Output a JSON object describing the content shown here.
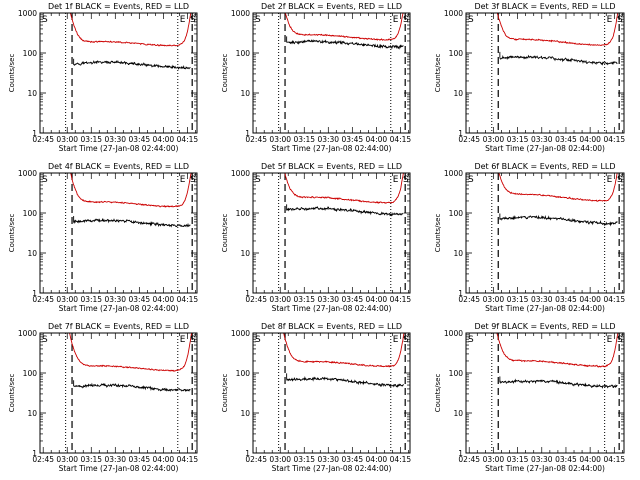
{
  "chart_data": [
    {
      "type": "line",
      "panel": "1f",
      "title": "Det 1f BLACK = Events, RED = LLD",
      "xlabel": "Start Time (27-Jan-08 02:44:00)",
      "ylabel": "Counts/sec",
      "yscale": "log",
      "ylim": [
        1,
        1000
      ],
      "x_tick_labels": [
        "02:45",
        "03:00",
        "03:15",
        "03:30",
        "03:45",
        "04:00",
        "04:15"
      ],
      "y_tick_labels": [
        "1",
        "10",
        "100",
        "1000"
      ],
      "dotted_vlines": [
        "02:59",
        "04:09"
      ],
      "dashed_vlines": [
        "03:03",
        "04:18"
      ],
      "corner_labels": {
        "left": "S",
        "right": "E",
        "far_right": "S"
      },
      "series": [
        {
          "name": "Events",
          "color": "#000000",
          "start": "03:04",
          "end": "04:17",
          "base": 54,
          "end_value": 48
        },
        {
          "name": "LLD",
          "color": "#cc0000",
          "start": "03:00",
          "end": "04:18",
          "base": 170,
          "end_value": 175
        }
      ]
    },
    {
      "type": "line",
      "panel": "2f",
      "title": "Det 2f BLACK = Events, RED = LLD",
      "xlabel": "Start Time (27-Jan-08 02:44:00)",
      "ylabel": "Counts/sec",
      "yscale": "log",
      "ylim": [
        1,
        1000
      ],
      "x_tick_labels": [
        "02:45",
        "03:00",
        "03:15",
        "03:30",
        "03:45",
        "04:00",
        "04:15"
      ],
      "y_tick_labels": [
        "1",
        "10",
        "100",
        "1000"
      ],
      "dotted_vlines": [
        "02:59",
        "04:09"
      ],
      "dashed_vlines": [
        "03:03",
        "04:18"
      ],
      "corner_labels": {
        "left": "S",
        "right": "E",
        "far_right": "S"
      },
      "series": [
        {
          "name": "Events",
          "color": "#000000",
          "start": "03:04",
          "end": "04:17",
          "base": 180,
          "end_value": 160
        },
        {
          "name": "LLD",
          "color": "#cc0000",
          "start": "03:00",
          "end": "04:18",
          "base": 260,
          "end_value": 240
        }
      ]
    },
    {
      "type": "line",
      "panel": "3f",
      "title": "Det 3f BLACK = Events, RED = LLD",
      "xlabel": "Start Time (27-Jan-08 02:44:00)",
      "ylabel": "Counts/sec",
      "yscale": "log",
      "ylim": [
        1,
        1000
      ],
      "x_tick_labels": [
        "02:45",
        "03:00",
        "03:15",
        "03:30",
        "03:45",
        "04:00",
        "04:15"
      ],
      "y_tick_labels": [
        "1",
        "10",
        "100",
        "1000"
      ],
      "dotted_vlines": [
        "02:59",
        "04:09"
      ],
      "dashed_vlines": [
        "03:03",
        "04:18"
      ],
      "corner_labels": {
        "left": "S",
        "right": "E",
        "far_right": "S"
      },
      "series": [
        {
          "name": "Events",
          "color": "#000000",
          "start": "03:04",
          "end": "04:17",
          "base": 75,
          "end_value": 62
        },
        {
          "name": "LLD",
          "color": "#cc0000",
          "start": "03:00",
          "end": "04:18",
          "base": 200,
          "end_value": 175
        }
      ]
    },
    {
      "type": "line",
      "panel": "4f",
      "title": "Det 4f BLACK = Events, RED = LLD",
      "xlabel": "Start Time (27-Jan-08 02:44:00)",
      "ylabel": "Counts/sec",
      "yscale": "log",
      "ylim": [
        1,
        1000
      ],
      "x_tick_labels": [
        "02:45",
        "03:00",
        "03:15",
        "03:30",
        "03:45",
        "04:00",
        "04:15"
      ],
      "y_tick_labels": [
        "1",
        "10",
        "100",
        "1000"
      ],
      "dotted_vlines": [
        "02:59",
        "04:09"
      ],
      "dashed_vlines": [
        "03:03",
        "04:18"
      ],
      "corner_labels": {
        "left": "S",
        "right": "E",
        "far_right": "S"
      },
      "series": [
        {
          "name": "Events",
          "color": "#000000",
          "start": "03:04",
          "end": "04:17",
          "base": 60,
          "end_value": 55
        },
        {
          "name": "LLD",
          "color": "#cc0000",
          "start": "03:00",
          "end": "04:18",
          "base": 170,
          "end_value": 165
        }
      ]
    },
    {
      "type": "line",
      "panel": "5f",
      "title": "Det 5f BLACK = Events, RED = LLD",
      "xlabel": "Start Time (27-Jan-08 02:44:00)",
      "ylabel": "Counts/sec",
      "yscale": "log",
      "ylim": [
        1,
        1000
      ],
      "x_tick_labels": [
        "02:45",
        "03:00",
        "03:15",
        "03:30",
        "03:45",
        "04:00",
        "04:15"
      ],
      "y_tick_labels": [
        "1",
        "10",
        "100",
        "1000"
      ],
      "dotted_vlines": [
        "02:59",
        "04:09"
      ],
      "dashed_vlines": [
        "03:03",
        "04:18"
      ],
      "corner_labels": {
        "left": "S",
        "right": "E",
        "far_right": "S"
      },
      "series": [
        {
          "name": "Events",
          "color": "#000000",
          "start": "03:04",
          "end": "04:17",
          "base": 120,
          "end_value": 105
        },
        {
          "name": "LLD",
          "color": "#cc0000",
          "start": "03:00",
          "end": "04:18",
          "base": 230,
          "end_value": 200
        }
      ]
    },
    {
      "type": "line",
      "panel": "6f",
      "title": "Det 6f BLACK = Events, RED = LLD",
      "xlabel": "Start Time (27-Jan-08 02:44:00)",
      "ylabel": "Counts/sec",
      "yscale": "log",
      "ylim": [
        1,
        1000
      ],
      "x_tick_labels": [
        "02:45",
        "03:00",
        "03:15",
        "03:30",
        "03:45",
        "04:00",
        "04:15"
      ],
      "y_tick_labels": [
        "1",
        "10",
        "100",
        "1000"
      ],
      "dotted_vlines": [
        "02:59",
        "04:09"
      ],
      "dashed_vlines": [
        "03:03",
        "04:18"
      ],
      "corner_labels": {
        "left": "S",
        "right": "E",
        "far_right": "S"
      },
      "series": [
        {
          "name": "Events",
          "color": "#000000",
          "start": "03:04",
          "end": "04:17",
          "base": 72,
          "end_value": 62
        },
        {
          "name": "LLD",
          "color": "#cc0000",
          "start": "03:00",
          "end": "04:18",
          "base": 280,
          "end_value": 220
        }
      ]
    },
    {
      "type": "line",
      "panel": "7f",
      "title": "Det 7f BLACK = Events, RED = LLD",
      "xlabel": "Start Time (27-Jan-08 02:44:00)",
      "ylabel": "Counts/sec",
      "yscale": "log",
      "ylim": [
        1,
        1000
      ],
      "x_tick_labels": [
        "02:45",
        "03:00",
        "03:15",
        "03:30",
        "03:45",
        "04:00",
        "04:15"
      ],
      "y_tick_labels": [
        "1",
        "10",
        "100",
        "1000"
      ],
      "dotted_vlines": [
        "02:59",
        "04:09"
      ],
      "dashed_vlines": [
        "03:03",
        "04:18"
      ],
      "corner_labels": {
        "left": "S",
        "right": "E",
        "far_right": "S"
      },
      "series": [
        {
          "name": "Events",
          "color": "#000000",
          "start": "03:04",
          "end": "04:17",
          "base": 45,
          "end_value": 42
        },
        {
          "name": "LLD",
          "color": "#cc0000",
          "start": "03:00",
          "end": "04:18",
          "base": 135,
          "end_value": 130
        }
      ]
    },
    {
      "type": "line",
      "panel": "8f",
      "title": "Det 8f BLACK = Events, RED = LLD",
      "xlabel": "Start Time (27-Jan-08 02:44:00)",
      "ylabel": "Counts/sec",
      "yscale": "log",
      "ylim": [
        1,
        1000
      ],
      "x_tick_labels": [
        "02:45",
        "03:00",
        "03:15",
        "03:30",
        "03:45",
        "04:00",
        "04:15"
      ],
      "y_tick_labels": [
        "1",
        "10",
        "100",
        "1000"
      ],
      "dotted_vlines": [
        "02:59",
        "04:09"
      ],
      "dashed_vlines": [
        "03:03",
        "04:18"
      ],
      "corner_labels": {
        "left": "S",
        "right": "E",
        "far_right": "S"
      },
      "series": [
        {
          "name": "Events",
          "color": "#000000",
          "start": "03:04",
          "end": "04:17",
          "base": 68,
          "end_value": 55
        },
        {
          "name": "LLD",
          "color": "#cc0000",
          "start": "03:00",
          "end": "04:18",
          "base": 175,
          "end_value": 165
        }
      ]
    },
    {
      "type": "line",
      "panel": "9f",
      "title": "Det 9f BLACK = Events, RED = LLD",
      "xlabel": "Start Time (27-Jan-08 02:44:00)",
      "ylabel": "Counts/sec",
      "yscale": "log",
      "ylim": [
        1,
        1000
      ],
      "x_tick_labels": [
        "02:45",
        "03:00",
        "03:15",
        "03:30",
        "03:45",
        "04:00",
        "04:15"
      ],
      "y_tick_labels": [
        "1",
        "10",
        "100",
        "1000"
      ],
      "dotted_vlines": [
        "02:59",
        "04:09"
      ],
      "dashed_vlines": [
        "03:03",
        "04:18"
      ],
      "corner_labels": {
        "left": "S",
        "right": "E",
        "far_right": "S"
      },
      "series": [
        {
          "name": "Events",
          "color": "#000000",
          "start": "03:04",
          "end": "04:17",
          "base": 58,
          "end_value": 52
        },
        {
          "name": "LLD",
          "color": "#cc0000",
          "start": "03:00",
          "end": "04:18",
          "base": 185,
          "end_value": 165
        }
      ]
    }
  ]
}
